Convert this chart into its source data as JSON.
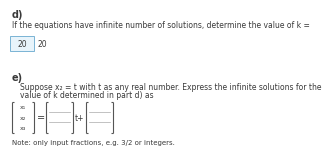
{
  "bg_color": "#ffffff",
  "d_label": "d)",
  "d_text": "If the equations have infinite number of solutions, determine the value of k =",
  "d_box_value": "20",
  "d_answer": "20",
  "e_label": "e)",
  "e_text1": "Suppose x₂ = t with t as any real number. Express the infinite solutions for the",
  "e_text2": "value of k determined in part d) as",
  "note_text": "Note: only input fractions, e.g. 3/2 or integers.",
  "x_labels": [
    "x₁",
    "x₂",
    "x₃"
  ],
  "text_color": "#3a3a3a",
  "bracket_color": "#555555",
  "line_color": "#aaaaaa",
  "box_edge_color": "#7ab3d4",
  "box_face_color": "#e8f4fb",
  "fs_label": 7,
  "fs_body": 5.5,
  "fs_note": 5.0,
  "fs_xlabels": 4.5,
  "fs_equals": 7
}
